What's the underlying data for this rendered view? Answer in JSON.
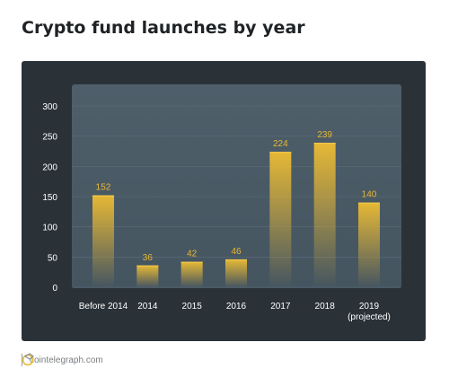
{
  "title": "Crypto fund launches by year",
  "footer": {
    "source": "cointelegraph.com"
  },
  "colors": {
    "panel": "#2a3238",
    "plot": "#4c5b66",
    "bar": "#e6b835",
    "label": "#e6b835",
    "text": "#ffffff"
  },
  "chart_data": {
    "type": "bar",
    "categories": [
      [
        "Before 2014"
      ],
      [
        "2014"
      ],
      [
        "2015"
      ],
      [
        "2016"
      ],
      [
        "2017"
      ],
      [
        "2018"
      ],
      [
        "2019",
        "(projected)"
      ]
    ],
    "values": [
      152,
      36,
      42,
      46,
      224,
      239,
      140
    ],
    "ylim": [
      0,
      300
    ],
    "yticks": [
      0,
      50,
      100,
      150,
      200,
      250,
      300
    ],
    "grid": true,
    "legend": "none"
  }
}
